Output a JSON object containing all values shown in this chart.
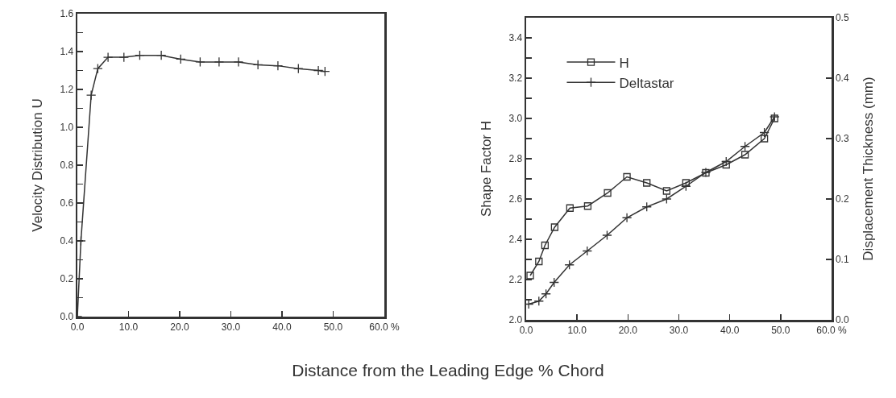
{
  "chart_data": [
    {
      "type": "line",
      "ylabel": "Velocity Distribution U",
      "xlabel": "Distance from the Leading Edge % Chord",
      "marker": "cross",
      "grid": false,
      "legend": false,
      "xlim": [
        0,
        60
      ],
      "xticks": [
        {
          "value": 0,
          "label": "0.0"
        },
        {
          "value": 10,
          "label": "10.0"
        },
        {
          "value": 20,
          "label": "20.0"
        },
        {
          "value": 30,
          "label": "30.0"
        },
        {
          "value": 40,
          "label": "40.0"
        },
        {
          "value": 50,
          "label": "50.0"
        },
        {
          "value": 60,
          "label": "60.0 %"
        }
      ],
      "ylim": [
        0,
        1.6
      ],
      "yticks": [
        {
          "value": 0,
          "label": "0.0"
        },
        {
          "value": 0.1,
          "label": null
        },
        {
          "value": 0.2,
          "label": "0.2"
        },
        {
          "value": 0.3,
          "label": null
        },
        {
          "value": 0.4,
          "label": "0.4"
        },
        {
          "value": 0.5,
          "label": null
        },
        {
          "value": 0.6,
          "label": "0.6"
        },
        {
          "value": 0.7,
          "label": null
        },
        {
          "value": 0.8,
          "label": "0.8"
        },
        {
          "value": 0.9,
          "label": null
        },
        {
          "value": 1,
          "label": "1.0"
        },
        {
          "value": 1.1,
          "label": null
        },
        {
          "value": 1.2,
          "label": "1.2"
        },
        {
          "value": 1.3,
          "label": null
        },
        {
          "value": 1.4,
          "label": "1.4"
        },
        {
          "value": 1.5,
          "label": null
        },
        {
          "value": 1.6,
          "label": "1.6"
        }
      ],
      "series": [
        {
          "color": "#333333",
          "x": [
            0,
            0.7,
            2.7,
            4.0,
            6.0,
            9.1,
            12.2,
            16.4,
            20.2,
            24.0,
            27.7,
            31.5,
            35.3,
            39.2,
            43.2,
            47.1,
            48.4
          ],
          "values": [
            0,
            0.4,
            1.17,
            1.31,
            1.37,
            1.37,
            1.38,
            1.38,
            1.36,
            1.345,
            1.345,
            1.345,
            1.33,
            1.325,
            1.31,
            1.3,
            1.295
          ]
        }
      ]
    },
    {
      "type": "line",
      "ylabel": "Shape Factor H",
      "y2label": "Displacement Thickness (mm)",
      "grid": false,
      "legend": "top left",
      "xlim": [
        0,
        60
      ],
      "xticks": [
        {
          "value": 0,
          "label": "0.0"
        },
        {
          "value": 10,
          "label": "10.0"
        },
        {
          "value": 20,
          "label": "20.0"
        },
        {
          "value": 30,
          "label": "30.0"
        },
        {
          "value": 40,
          "label": "40.0"
        },
        {
          "value": 50,
          "label": "50.0"
        },
        {
          "value": 60,
          "label": "60.0 %"
        }
      ],
      "ylim": [
        2.0,
        3.5
      ],
      "yticks": [
        {
          "value": 2.0,
          "label": "2.0"
        },
        {
          "value": 2.1,
          "label": null
        },
        {
          "value": 2.2,
          "label": "2.2"
        },
        {
          "value": 2.3,
          "label": null
        },
        {
          "value": 2.4,
          "label": "2.4"
        },
        {
          "value": 2.5,
          "label": null
        },
        {
          "value": 2.6,
          "label": "2.6"
        },
        {
          "value": 2.7,
          "label": null
        },
        {
          "value": 2.8,
          "label": "2.8"
        },
        {
          "value": 2.9,
          "label": null
        },
        {
          "value": 3.0,
          "label": "3.0"
        },
        {
          "value": 3.1,
          "label": null
        },
        {
          "value": 3.2,
          "label": "3.2"
        },
        {
          "value": 3.3,
          "label": null
        },
        {
          "value": 3.4,
          "label": "3.4"
        }
      ],
      "y2lim": [
        0,
        0.5
      ],
      "y2ticks": [
        {
          "value": 0,
          "label": "0.0"
        },
        {
          "value": 0.1,
          "label": "0.1"
        },
        {
          "value": 0.2,
          "label": "0.2"
        },
        {
          "value": 0.3,
          "label": "0.3"
        },
        {
          "value": 0.4,
          "label": "0.4"
        },
        {
          "value": 0.5,
          "label": "0.5"
        }
      ],
      "series": [
        {
          "name": "H",
          "color": "#333333",
          "marker": "square",
          "x": [
            0.8,
            2.5,
            3.7,
            5.6,
            8.6,
            12.1,
            16.0,
            19.8,
            23.7,
            27.6,
            31.4,
            35.3,
            39.3,
            43.0,
            46.8,
            48.8
          ],
          "values": [
            2.22,
            2.29,
            2.37,
            2.46,
            2.555,
            2.565,
            2.63,
            2.71,
            2.68,
            2.64,
            2.68,
            2.73,
            2.77,
            2.82,
            2.9,
            3.0
          ]
        },
        {
          "name": "Deltastar",
          "color": "#333333",
          "marker": "cross",
          "axis": "y2",
          "x": [
            0.5,
            2.5,
            3.9,
            5.5,
            8.5,
            12.0,
            15.9,
            19.8,
            23.7,
            27.6,
            31.4,
            35.3,
            39.3,
            43.0,
            46.8,
            48.8
          ],
          "values": [
            0.026,
            0.031,
            0.043,
            0.062,
            0.091,
            0.114,
            0.14,
            0.169,
            0.187,
            0.2,
            0.221,
            0.244,
            0.262,
            0.287,
            0.31,
            0.336
          ]
        }
      ]
    }
  ]
}
